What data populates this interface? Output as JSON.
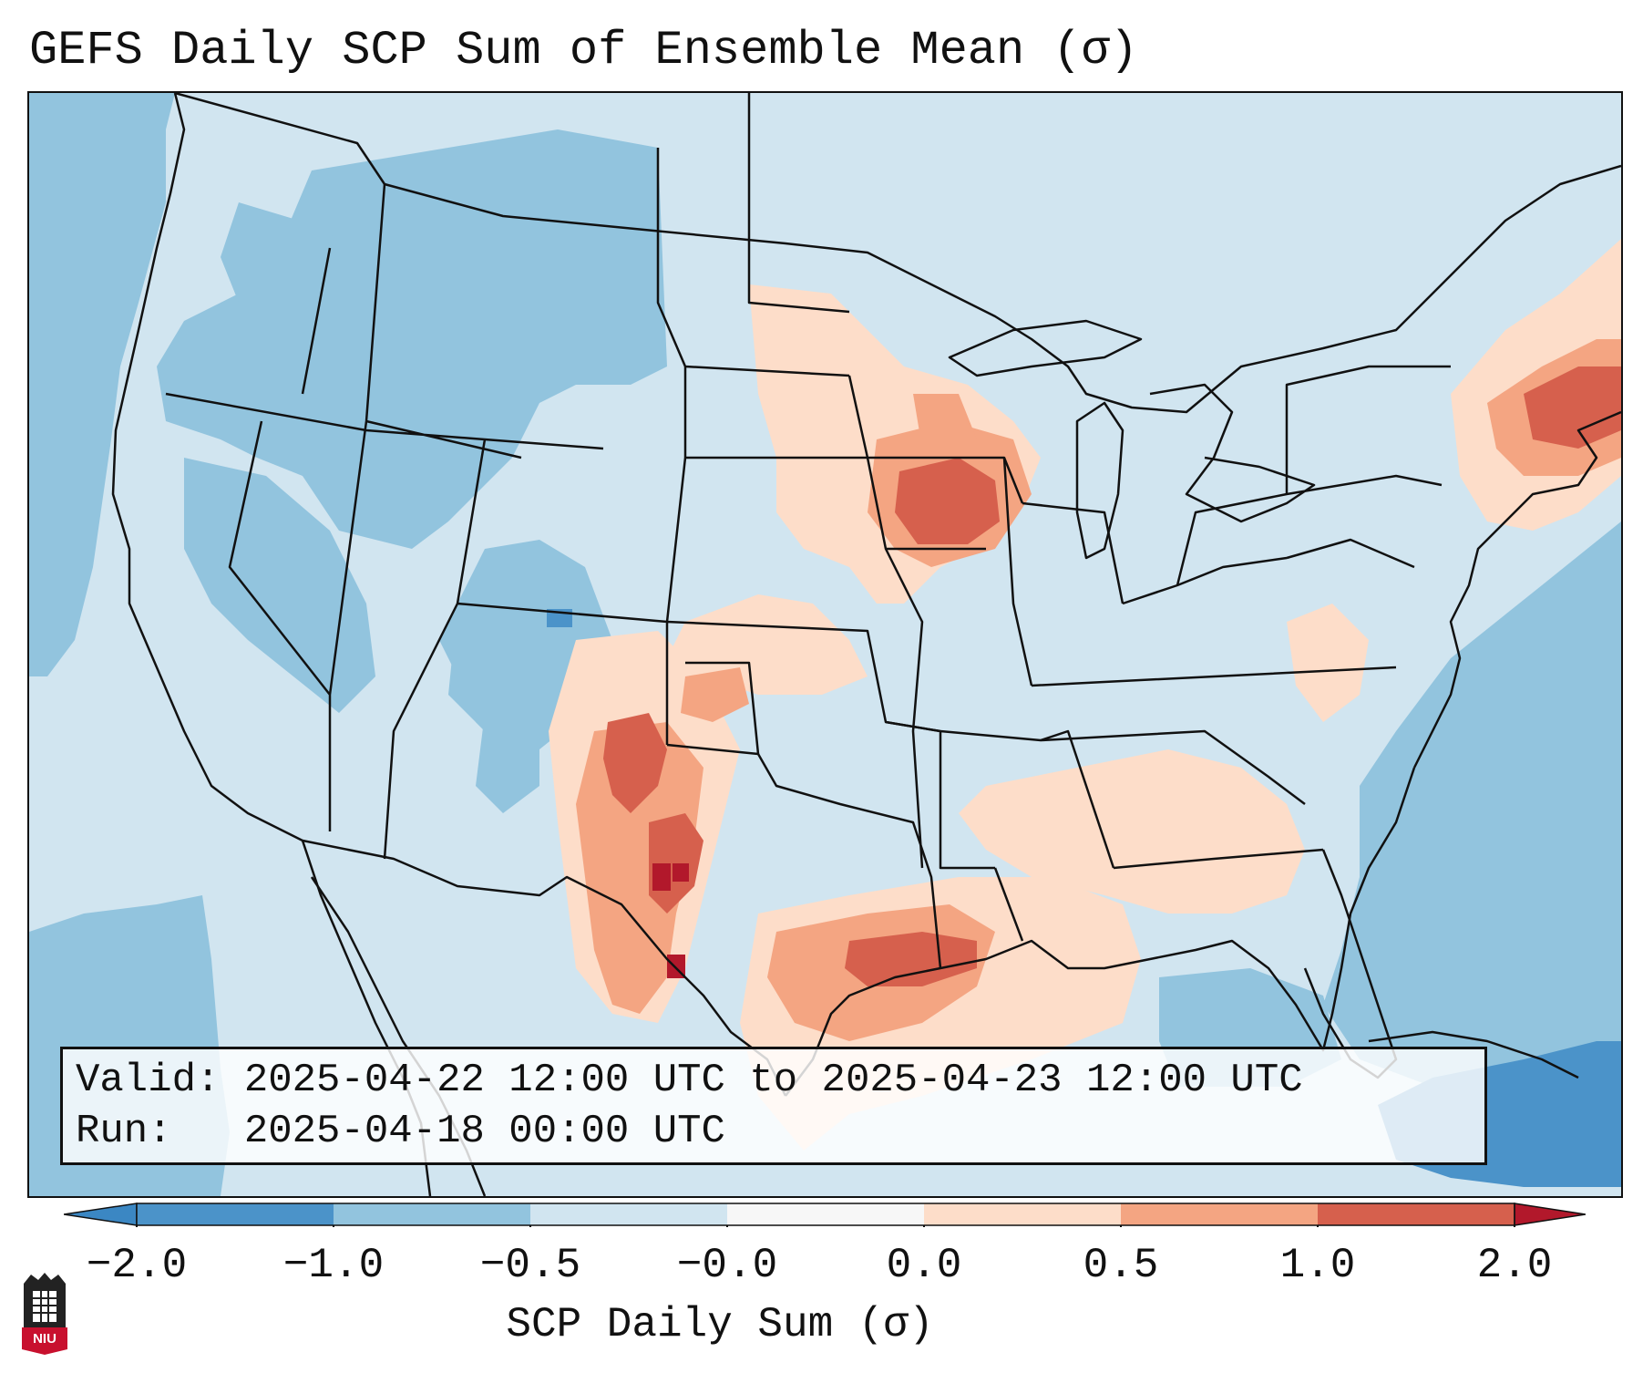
{
  "title": "GEFS Daily SCP Sum of Ensemble Mean (σ)",
  "info": {
    "valid_label": "Valid:",
    "valid_value": "2025-04-22 12:00 UTC to 2025-04-23 12:00 UTC",
    "run_label": "Run:",
    "run_value": "2025-04-18 00:00 UTC"
  },
  "colorbar": {
    "label": "SCP Daily Sum (σ)",
    "ticks": [
      "−2.0",
      "−1.0",
      "−0.5",
      "−0.0",
      "0.0",
      "0.5",
      "1.0",
      "2.0"
    ],
    "colors": {
      "below_min": "#3b87c3",
      "bin_neg2_neg1": "#4b93c9",
      "bin_neg1_neg05": "#92c4de",
      "bin_neg05_0": "#d1e5f0",
      "bin_0_05": "#fdddc9",
      "bin_05_1": "#f4a582",
      "bin_1_2": "#d6604d",
      "above_max": "#b2182b"
    }
  },
  "map": {
    "projection": "Lambert Conformal (CONUS)",
    "base_color": "#d1e5f0",
    "ocean_color": "#92c4de"
  },
  "logo": {
    "text": "NIU"
  }
}
